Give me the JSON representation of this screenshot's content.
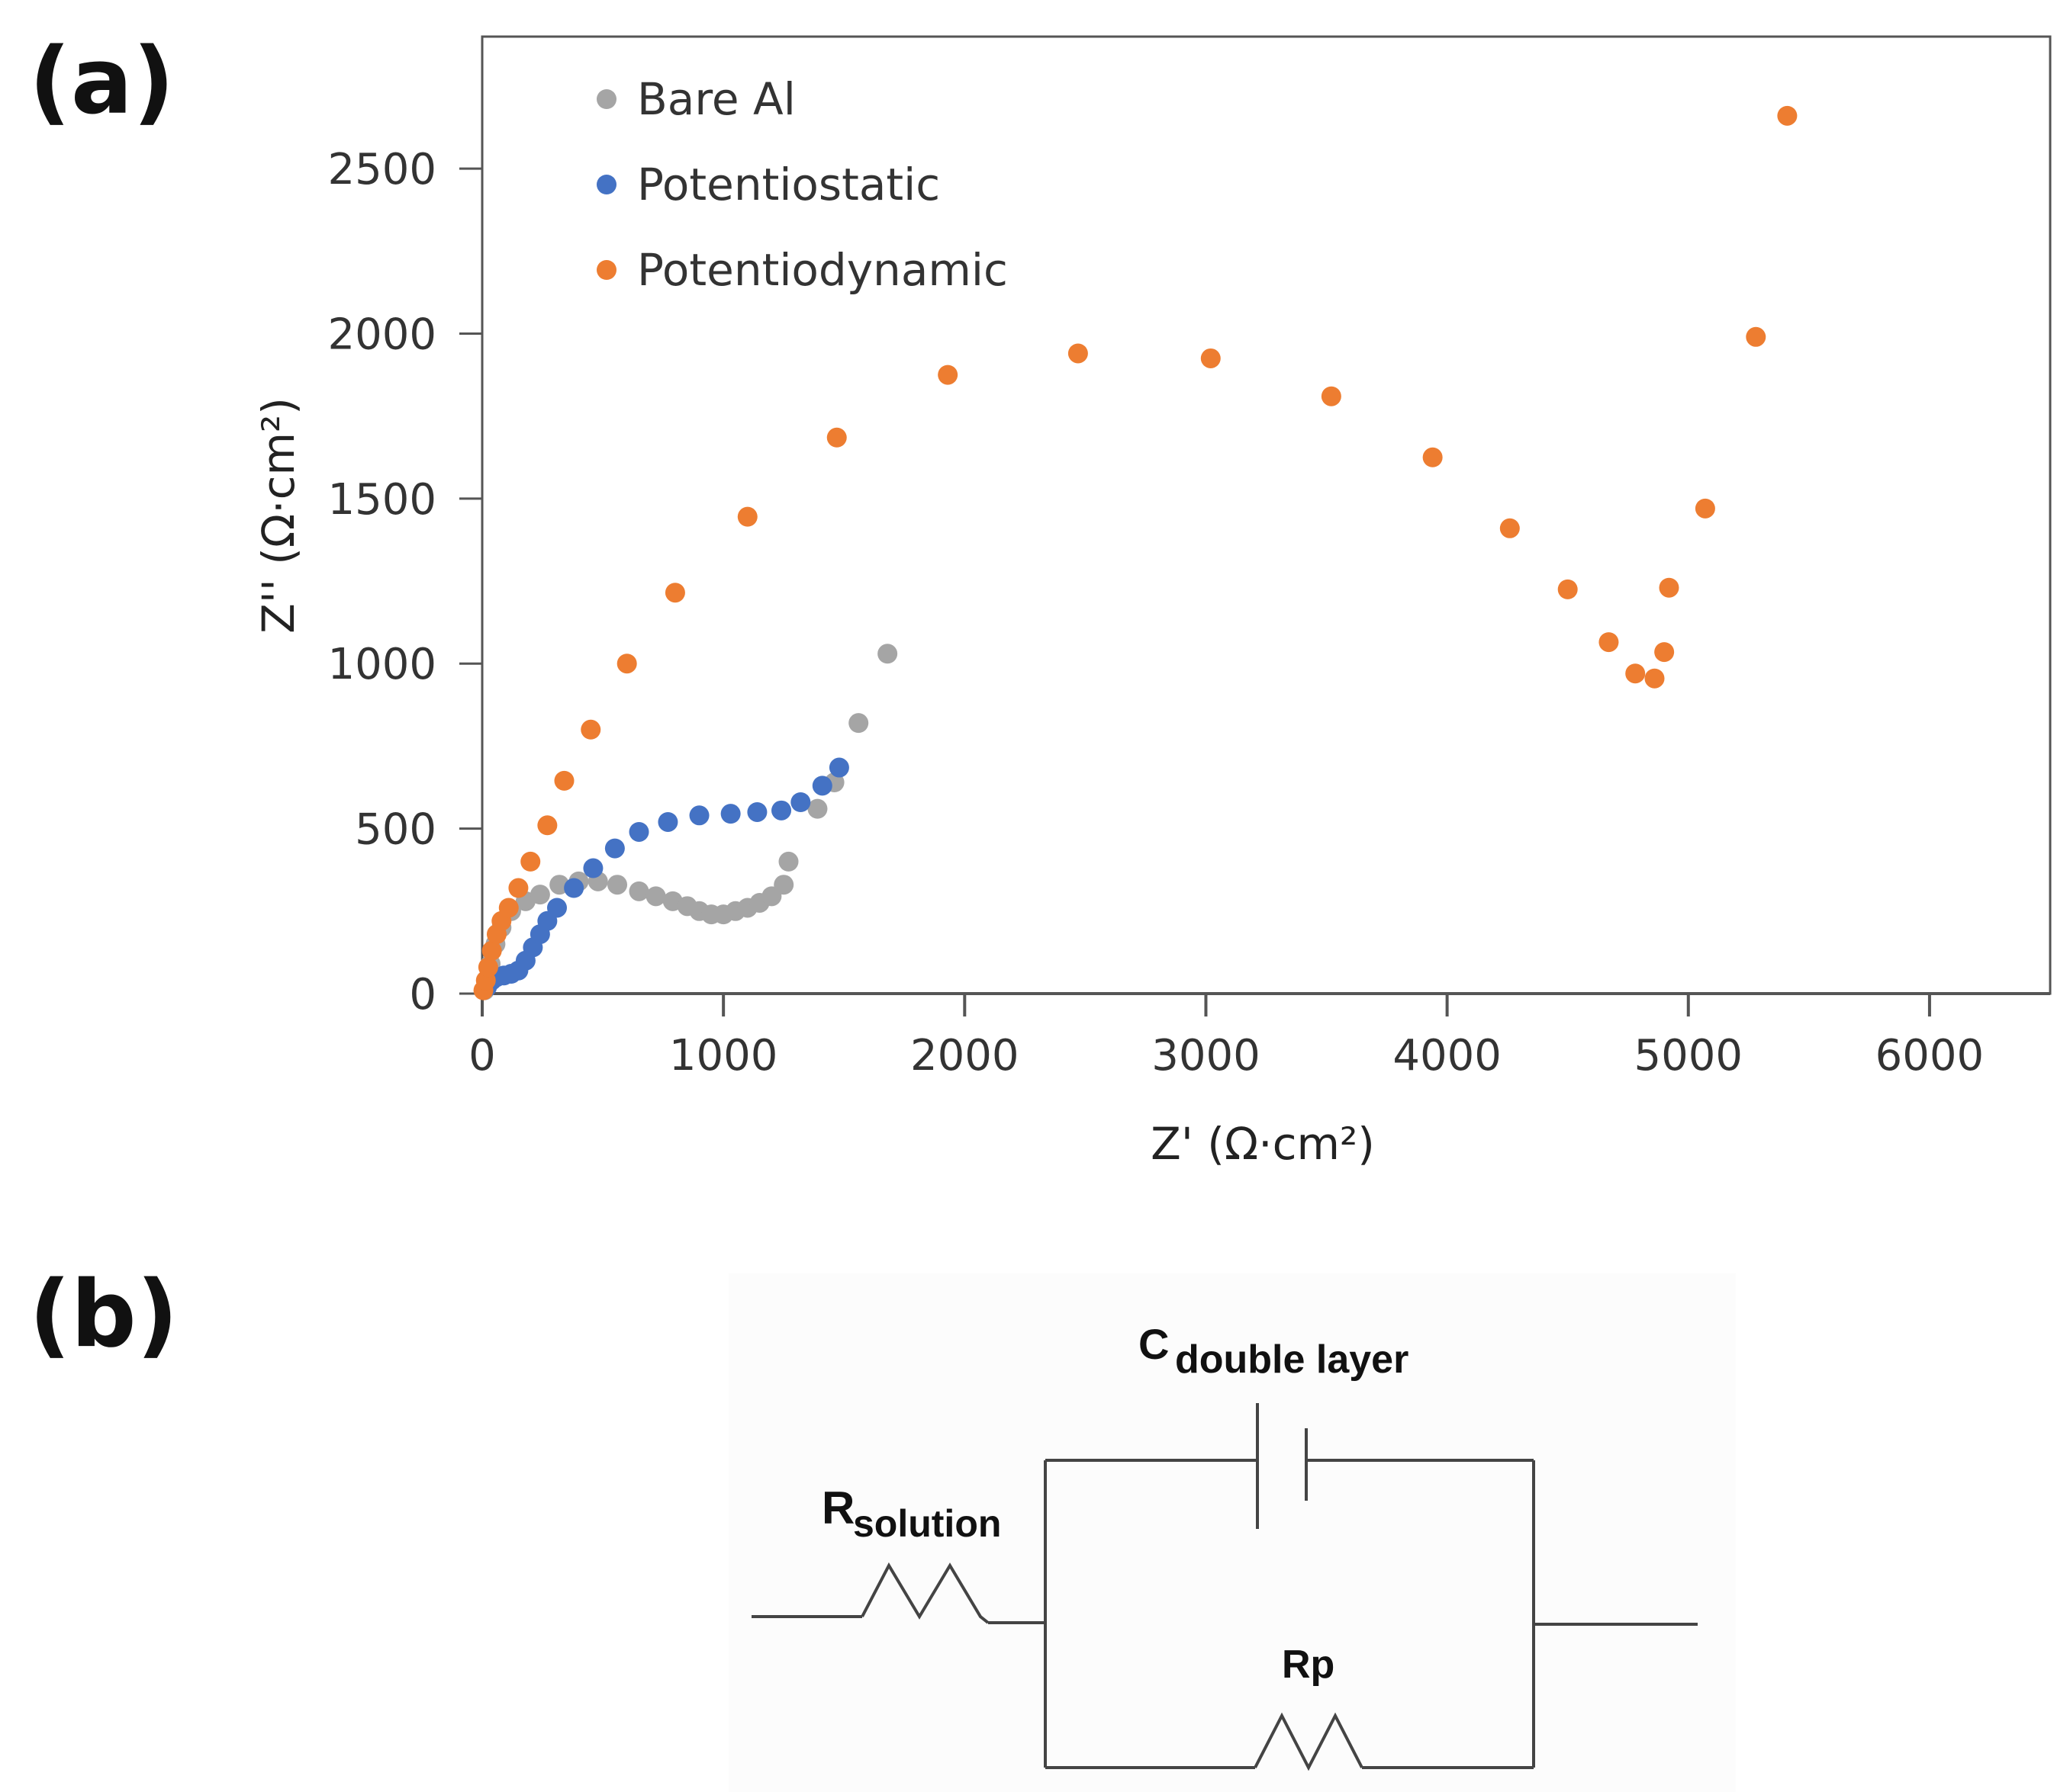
{
  "panel_a_label": "(a)",
  "panel_b_label": "(b)",
  "chart_data": {
    "type": "scatter",
    "title": "",
    "xlabel": "Z' (Ω·cm²)",
    "ylabel": "Z'' (Ω·cm²)",
    "xlim": [
      0,
      6500
    ],
    "ylim": [
      0,
      2900
    ],
    "xticks": [
      0,
      1000,
      2000,
      3000,
      4000,
      5000,
      6000
    ],
    "yticks": [
      0,
      500,
      1000,
      1500,
      2000,
      2500
    ],
    "legend_position": "top-left",
    "series": [
      {
        "name": "Bare Al",
        "color": "#a5a5a5",
        "points": [
          [
            10,
            10
          ],
          [
            20,
            40
          ],
          [
            35,
            90
          ],
          [
            55,
            150
          ],
          [
            80,
            200
          ],
          [
            120,
            250
          ],
          [
            180,
            280
          ],
          [
            240,
            300
          ],
          [
            320,
            330
          ],
          [
            400,
            340
          ],
          [
            480,
            340
          ],
          [
            560,
            330
          ],
          [
            650,
            310
          ],
          [
            720,
            295
          ],
          [
            790,
            280
          ],
          [
            850,
            265
          ],
          [
            900,
            250
          ],
          [
            950,
            240
          ],
          [
            1000,
            240
          ],
          [
            1050,
            250
          ],
          [
            1100,
            260
          ],
          [
            1150,
            275
          ],
          [
            1200,
            295
          ],
          [
            1250,
            330
          ],
          [
            1270,
            400
          ],
          [
            1390,
            560
          ],
          [
            1460,
            640
          ],
          [
            1560,
            820
          ],
          [
            1680,
            1030
          ]
        ]
      },
      {
        "name": "Potentiostatic",
        "color": "#4472c4",
        "points": [
          [
            20,
            20
          ],
          [
            40,
            40
          ],
          [
            60,
            50
          ],
          [
            90,
            55
          ],
          [
            120,
            60
          ],
          [
            150,
            70
          ],
          [
            180,
            100
          ],
          [
            210,
            140
          ],
          [
            240,
            180
          ],
          [
            270,
            220
          ],
          [
            310,
            260
          ],
          [
            380,
            320
          ],
          [
            460,
            380
          ],
          [
            550,
            440
          ],
          [
            650,
            490
          ],
          [
            770,
            520
          ],
          [
            900,
            540
          ],
          [
            1030,
            545
          ],
          [
            1140,
            550
          ],
          [
            1240,
            555
          ],
          [
            1320,
            580
          ],
          [
            1410,
            630
          ],
          [
            1480,
            685
          ]
        ]
      },
      {
        "name": "Potentiodynamic",
        "color": "#ed7d31",
        "points": [
          [
            5,
            10
          ],
          [
            15,
            40
          ],
          [
            25,
            80
          ],
          [
            40,
            130
          ],
          [
            60,
            180
          ],
          [
            80,
            220
          ],
          [
            110,
            260
          ],
          [
            150,
            320
          ],
          [
            200,
            400
          ],
          [
            270,
            510
          ],
          [
            340,
            645
          ],
          [
            450,
            800
          ],
          [
            600,
            1000
          ],
          [
            800,
            1215
          ],
          [
            1100,
            1445
          ],
          [
            1470,
            1685
          ],
          [
            1930,
            1875
          ],
          [
            2470,
            1940
          ],
          [
            3020,
            1925
          ],
          [
            3520,
            1810
          ],
          [
            3940,
            1625
          ],
          [
            4260,
            1410
          ],
          [
            4500,
            1225
          ],
          [
            4670,
            1065
          ],
          [
            4780,
            970
          ],
          [
            4860,
            955
          ],
          [
            4900,
            1035
          ],
          [
            4920,
            1230
          ],
          [
            5070,
            1470
          ],
          [
            5280,
            1990
          ],
          [
            5410,
            2660
          ]
        ]
      }
    ]
  },
  "circuit": {
    "r_solution_main": "R",
    "r_solution_sub": "solution",
    "c_main": "C",
    "c_sub": "double layer",
    "rp_label": "Rp"
  }
}
